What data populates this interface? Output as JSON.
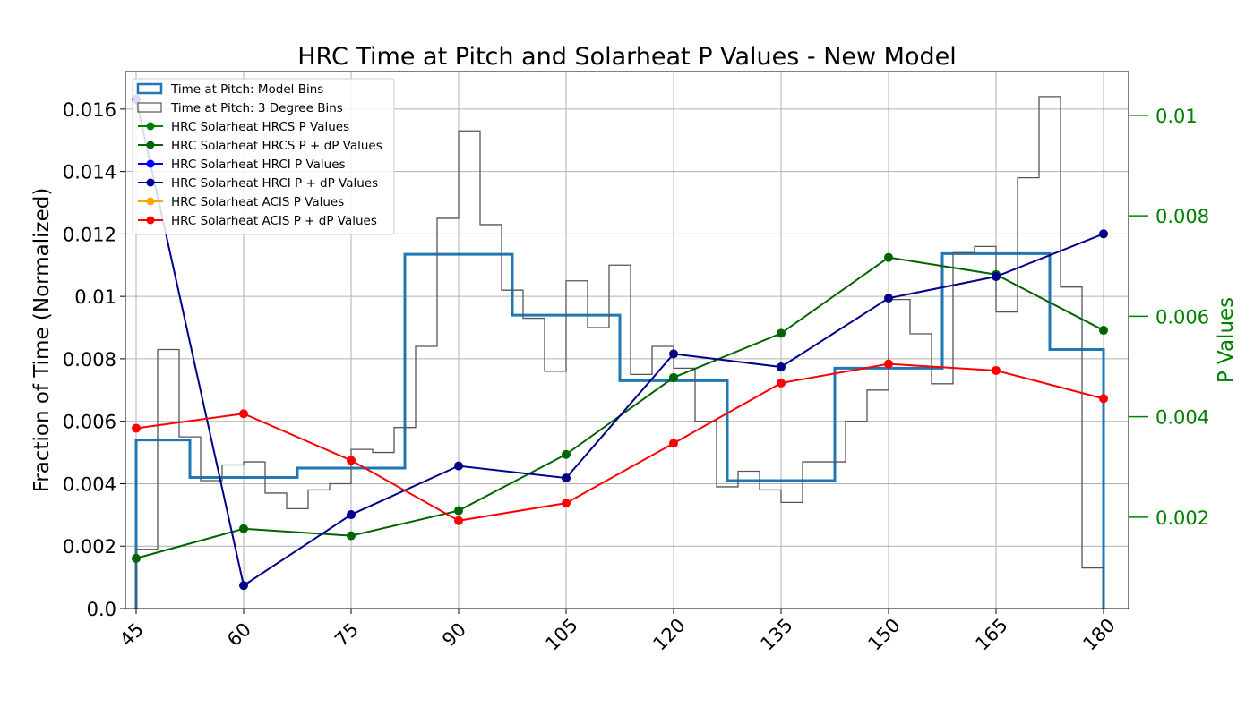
{
  "chart_data": {
    "type": "line",
    "title": "HRC Time at Pitch and Solarheat P Values - New Model",
    "xlabel": "",
    "ylabel": "Fraction of Time (Normalized)",
    "y2label": "P Values",
    "xlim": [
      43.5,
      183.5
    ],
    "ylim": [
      0,
      0.0172
    ],
    "y2lim": [
      0.00018,
      0.01087
    ],
    "x_ticks": [
      45,
      60,
      75,
      90,
      105,
      120,
      135,
      150,
      165,
      180
    ],
    "y_ticks": [
      0,
      0.002,
      0.004,
      0.006,
      0.008,
      0.01,
      0.012,
      0.014,
      0.016
    ],
    "y_tick_labels": [
      "0.0",
      "0.002",
      "0.004",
      "0.006",
      "0.008",
      "0.01",
      "0.012",
      "0.014",
      "0.016"
    ],
    "y2_ticks": [
      0.002,
      0.004,
      0.006,
      0.008,
      0.01
    ],
    "y2_tick_labels": [
      "0.002",
      "0.004",
      "0.006",
      "0.008",
      "0.01"
    ],
    "grid": true,
    "legend_position": "top-left",
    "right_axis_color": "#008000",
    "histograms": [
      {
        "name": "Time at Pitch: Model Bins",
        "color": "#1f77b4",
        "edges": [
          45,
          52.5,
          67.5,
          82.5,
          97.5,
          112.5,
          127.5,
          142.5,
          157.5,
          172.5,
          180
        ],
        "values": [
          0.0054,
          0.0042,
          0.0045,
          0.01135,
          0.0094,
          0.0073,
          0.0041,
          0.0077,
          0.01137,
          0.0083
        ]
      },
      {
        "name": "Time at Pitch: 3 Degree Bins",
        "color": "#555555",
        "edges": [
          45,
          48,
          51,
          54,
          57,
          60,
          63,
          66,
          69,
          72,
          75,
          78,
          81,
          84,
          87,
          90,
          93,
          96,
          99,
          102,
          105,
          108,
          111,
          114,
          117,
          120,
          123,
          126,
          129,
          132,
          135,
          138,
          141,
          144,
          147,
          150,
          153,
          156,
          159,
          162,
          165,
          168,
          171,
          174,
          177,
          180
        ],
        "values": [
          0.0019,
          0.0083,
          0.0055,
          0.0041,
          0.0046,
          0.0047,
          0.0037,
          0.0032,
          0.0038,
          0.004,
          0.0051,
          0.005,
          0.0058,
          0.0084,
          0.0125,
          0.0153,
          0.0123,
          0.0102,
          0.0093,
          0.0076,
          0.0105,
          0.009,
          0.011,
          0.0075,
          0.0084,
          0.0077,
          0.006,
          0.0039,
          0.0044,
          0.0038,
          0.0034,
          0.0047,
          0.0047,
          0.006,
          0.007,
          0.0099,
          0.0088,
          0.0072,
          0.0114,
          0.0116,
          0.0095,
          0.0138,
          0.0164,
          0.0103,
          0.0013
        ]
      }
    ],
    "series": [
      {
        "name": "HRC Solarheat HRCS P Values",
        "color": "#008000",
        "axis": "right",
        "x": [],
        "values": []
      },
      {
        "name": "HRC Solarheat HRCS P + dP Values",
        "color": "#006400",
        "axis": "right",
        "x": [
          45,
          60,
          75,
          90,
          105,
          120,
          135,
          150,
          165,
          180
        ],
        "values": [
          0.00118,
          0.00177,
          0.00163,
          0.00213,
          0.00325,
          0.00478,
          0.00566,
          0.00717,
          0.00683,
          0.00572
        ]
      },
      {
        "name": "HRC Solarheat HRCI P Values",
        "color": "#0000ff",
        "axis": "right",
        "x": [],
        "values": []
      },
      {
        "name": "HRC Solarheat HRCI P + dP Values",
        "color": "#00008b",
        "axis": "right",
        "x": [
          45,
          60,
          75,
          90,
          105,
          120,
          135,
          150,
          165,
          180
        ],
        "values": [
          0.01032,
          0.00064,
          0.00205,
          0.00302,
          0.00278,
          0.00525,
          0.00499,
          0.00636,
          0.00679,
          0.00764
        ]
      },
      {
        "name": "HRC Solarheat ACIS P Values",
        "color": "#ffa500",
        "axis": "right",
        "x": [],
        "values": []
      },
      {
        "name": "HRC Solarheat  ACIS P + dP Values",
        "color": "#ff0000",
        "axis": "right",
        "x": [
          45,
          60,
          75,
          90,
          105,
          120,
          135,
          150,
          165,
          180
        ],
        "values": [
          0.00377,
          0.00406,
          0.00313,
          0.00193,
          0.00228,
          0.00347,
          0.00467,
          0.00505,
          0.00492,
          0.00436
        ]
      }
    ]
  }
}
